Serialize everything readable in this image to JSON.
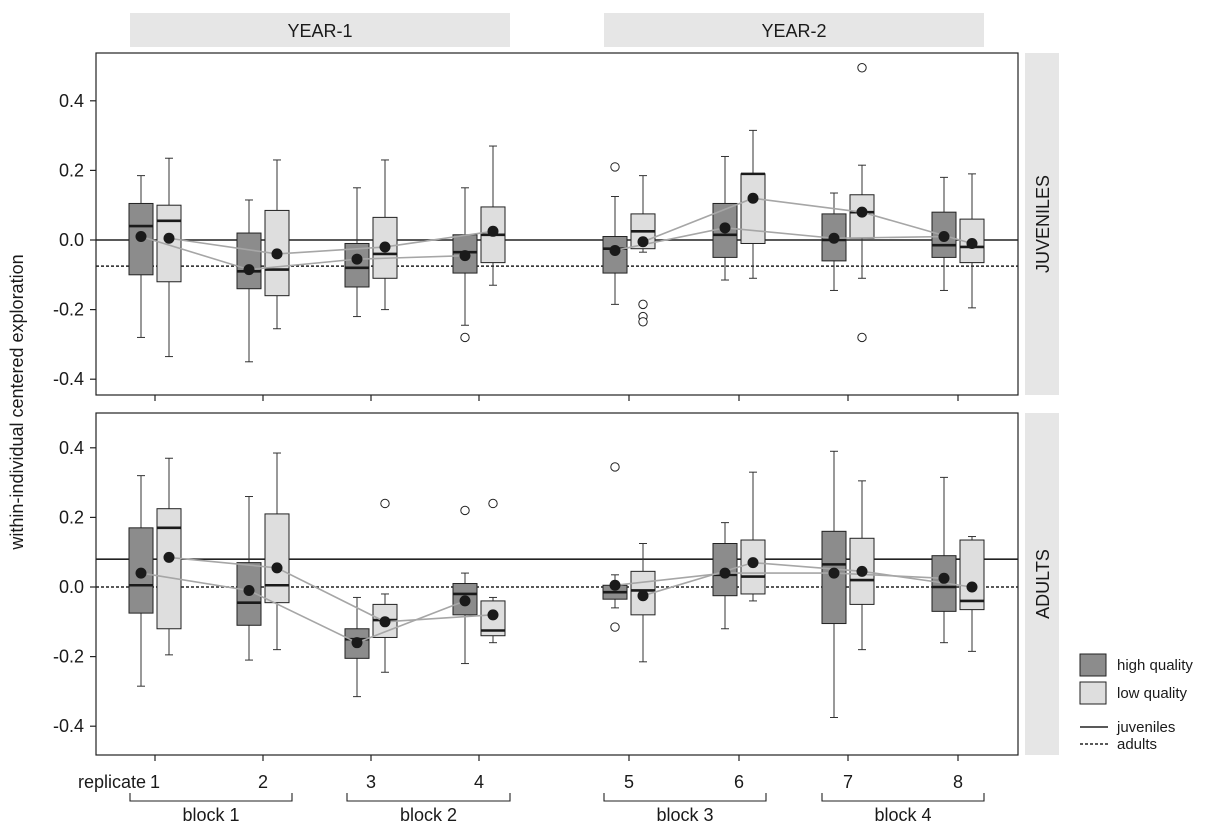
{
  "chart_data": {
    "type": "boxplot",
    "ylabel": "within-individual centered exploration",
    "column_strips": [
      "YEAR-1",
      "YEAR-2"
    ],
    "row_strips": [
      "JUVENILES",
      "ADULTS"
    ],
    "replicate_label": "replicate",
    "replicates": [
      "1",
      "2",
      "3",
      "4",
      "5",
      "6",
      "7",
      "8"
    ],
    "blocks": [
      "block 1",
      "block 2",
      "block 3",
      "block 4"
    ],
    "yticks": [
      -0.4,
      -0.2,
      0.0,
      0.2,
      0.4
    ],
    "ytick_labels": [
      "-0.4",
      "-0.2",
      "0.0",
      "0.2",
      "0.4"
    ],
    "ylim": [
      -0.45,
      0.54
    ],
    "colors": {
      "high": "#8c8c8c",
      "low": "#dedede",
      "strip": "#e6e6e6",
      "mean_line": "#a6a6a6"
    },
    "legend": {
      "high": "high quality",
      "low": "low quality",
      "juveniles": "juveniles",
      "adults": "adults"
    },
    "panels": [
      {
        "name": "JUVENILES",
        "ref_juveniles": 0.0,
        "ref_adults": -0.075,
        "boxes": [
          [
            {
              "q1": -0.1,
              "median": 0.04,
              "q3": 0.105,
              "wlo": -0.28,
              "whi": 0.185,
              "mean": 0.01,
              "outliers": []
            },
            {
              "q1": -0.12,
              "median": 0.055,
              "q3": 0.1,
              "wlo": -0.335,
              "whi": 0.235,
              "mean": 0.005,
              "outliers": []
            }
          ],
          [
            {
              "q1": -0.14,
              "median": -0.09,
              "q3": 0.02,
              "wlo": -0.35,
              "whi": 0.115,
              "mean": -0.085,
              "outliers": []
            },
            {
              "q1": -0.16,
              "median": -0.085,
              "q3": 0.085,
              "wlo": -0.255,
              "whi": 0.23,
              "mean": -0.04,
              "outliers": []
            }
          ],
          [
            {
              "q1": -0.135,
              "median": -0.08,
              "q3": -0.01,
              "wlo": -0.22,
              "whi": 0.15,
              "mean": -0.055,
              "outliers": []
            },
            {
              "q1": -0.11,
              "median": -0.04,
              "q3": 0.065,
              "wlo": -0.2,
              "whi": 0.23,
              "mean": -0.02,
              "outliers": []
            }
          ],
          [
            {
              "q1": -0.095,
              "median": -0.035,
              "q3": 0.015,
              "wlo": -0.245,
              "whi": 0.15,
              "mean": -0.045,
              "outliers": [
                -0.28
              ]
            },
            {
              "q1": -0.065,
              "median": 0.015,
              "q3": 0.095,
              "wlo": -0.13,
              "whi": 0.27,
              "mean": 0.025,
              "outliers": []
            }
          ],
          [
            {
              "q1": -0.095,
              "median": -0.025,
              "q3": 0.01,
              "wlo": -0.185,
              "whi": 0.125,
              "mean": -0.03,
              "outliers": [
                0.21
              ]
            },
            {
              "q1": -0.025,
              "median": 0.025,
              "q3": 0.075,
              "wlo": -0.035,
              "whi": 0.185,
              "mean": -0.005,
              "outliers": [
                -0.185,
                -0.22,
                -0.235
              ]
            }
          ],
          [
            {
              "q1": -0.05,
              "median": 0.015,
              "q3": 0.105,
              "wlo": -0.115,
              "whi": 0.24,
              "mean": 0.035,
              "outliers": []
            },
            {
              "q1": -0.01,
              "median": 0.19,
              "q3": 0.19,
              "wlo": -0.11,
              "whi": 0.315,
              "mean": 0.12,
              "outliers": []
            }
          ],
          [
            {
              "q1": -0.06,
              "median": 0.0,
              "q3": 0.075,
              "wlo": -0.145,
              "whi": 0.135,
              "mean": 0.005,
              "outliers": []
            },
            {
              "q1": 0.005,
              "median": 0.08,
              "q3": 0.13,
              "wlo": -0.11,
              "whi": 0.215,
              "mean": 0.08,
              "outliers": [
                0.495,
                -0.28
              ]
            }
          ],
          [
            {
              "q1": -0.05,
              "median": -0.015,
              "q3": 0.08,
              "wlo": -0.145,
              "whi": 0.18,
              "mean": 0.01,
              "outliers": []
            },
            {
              "q1": -0.065,
              "median": -0.02,
              "q3": 0.06,
              "wlo": -0.195,
              "whi": 0.19,
              "mean": -0.01,
              "outliers": []
            }
          ]
        ]
      },
      {
        "name": "ADULTS",
        "ref_juveniles": 0.08,
        "ref_adults": 0.0,
        "boxes": [
          [
            {
              "q1": -0.075,
              "median": 0.005,
              "q3": 0.17,
              "wlo": -0.285,
              "whi": 0.32,
              "mean": 0.04,
              "outliers": []
            },
            {
              "q1": -0.12,
              "median": 0.17,
              "q3": 0.225,
              "wlo": -0.195,
              "whi": 0.37,
              "mean": 0.085,
              "outliers": []
            }
          ],
          [
            {
              "q1": -0.11,
              "median": -0.045,
              "q3": 0.07,
              "wlo": -0.21,
              "whi": 0.26,
              "mean": -0.01,
              "outliers": []
            },
            {
              "q1": -0.045,
              "median": 0.005,
              "q3": 0.21,
              "wlo": -0.18,
              "whi": 0.385,
              "mean": 0.055,
              "outliers": []
            }
          ],
          [
            {
              "q1": -0.205,
              "median": -0.15,
              "q3": -0.12,
              "wlo": -0.315,
              "whi": -0.03,
              "mean": -0.16,
              "outliers": []
            },
            {
              "q1": -0.145,
              "median": -0.095,
              "q3": -0.05,
              "wlo": -0.245,
              "whi": -0.02,
              "mean": -0.1,
              "outliers": [
                0.24
              ]
            }
          ],
          [
            {
              "q1": -0.08,
              "median": -0.02,
              "q3": 0.01,
              "wlo": -0.22,
              "whi": 0.04,
              "mean": -0.04,
              "outliers": [
                0.22
              ]
            },
            {
              "q1": -0.14,
              "median": -0.125,
              "q3": -0.04,
              "wlo": -0.16,
              "whi": -0.03,
              "mean": -0.08,
              "outliers": [
                0.24
              ]
            }
          ],
          [
            {
              "q1": -0.035,
              "median": -0.015,
              "q3": 0.005,
              "wlo": -0.06,
              "whi": 0.035,
              "mean": 0.005,
              "outliers": [
                0.345,
                -0.115
              ]
            },
            {
              "q1": -0.08,
              "median": -0.01,
              "q3": 0.045,
              "wlo": -0.215,
              "whi": 0.125,
              "mean": -0.025,
              "outliers": []
            }
          ],
          [
            {
              "q1": -0.025,
              "median": 0.035,
              "q3": 0.125,
              "wlo": -0.12,
              "whi": 0.185,
              "mean": 0.04,
              "outliers": []
            },
            {
              "q1": -0.02,
              "median": 0.03,
              "q3": 0.135,
              "wlo": -0.04,
              "whi": 0.33,
              "mean": 0.07,
              "outliers": []
            }
          ],
          [
            {
              "q1": -0.105,
              "median": 0.065,
              "q3": 0.16,
              "wlo": -0.375,
              "whi": 0.39,
              "mean": 0.04,
              "outliers": []
            },
            {
              "q1": -0.05,
              "median": 0.02,
              "q3": 0.14,
              "wlo": -0.18,
              "whi": 0.305,
              "mean": 0.045,
              "outliers": []
            }
          ],
          [
            {
              "q1": -0.07,
              "median": 0.0,
              "q3": 0.09,
              "wlo": -0.16,
              "whi": 0.315,
              "mean": 0.025,
              "outliers": []
            },
            {
              "q1": -0.065,
              "median": -0.04,
              "q3": 0.135,
              "wlo": -0.185,
              "whi": 0.145,
              "mean": 0.0,
              "outliers": []
            }
          ]
        ]
      }
    ]
  }
}
